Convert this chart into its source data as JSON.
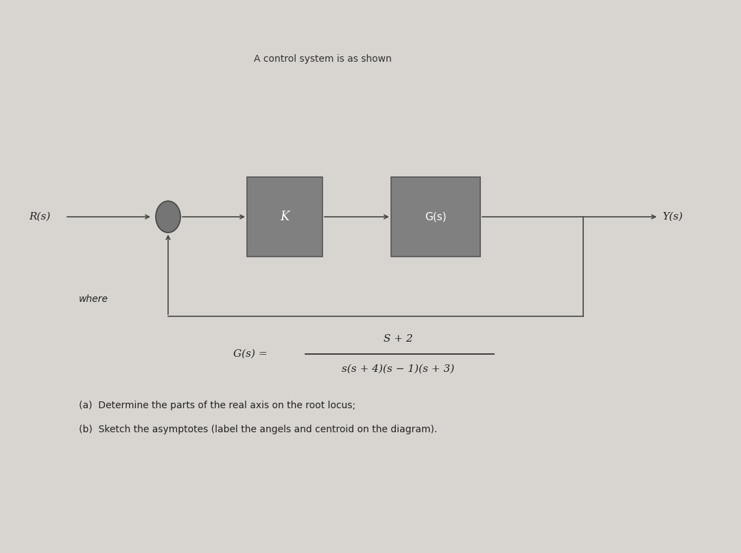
{
  "bg_color": "#d8d5d0",
  "title": "A control system is as shown",
  "title_fontsize": 10,
  "title_color": "#333333",
  "rs_label": "R(s)",
  "ys_label": "Y(s)",
  "k_label": "K",
  "gs_label": "G(s)",
  "where_label": "where",
  "formula_num": "S + 2",
  "formula_den": "s(s + 4)(s − 1)(s + 3)",
  "gs_eq": "G(s) =",
  "part_a": "(a)  Determine the parts of the real axis on the root locus;",
  "part_b": "(b)  Sketch the asymptotes (label the angels and centroid on the diagram).",
  "box_color": "#808080",
  "box_edge_color": "#555555",
  "line_color": "#444444",
  "text_color": "#222222",
  "formula_color": "#222222",
  "sumjunction_color": "#757575",
  "sumjunction_edge": "#444444"
}
